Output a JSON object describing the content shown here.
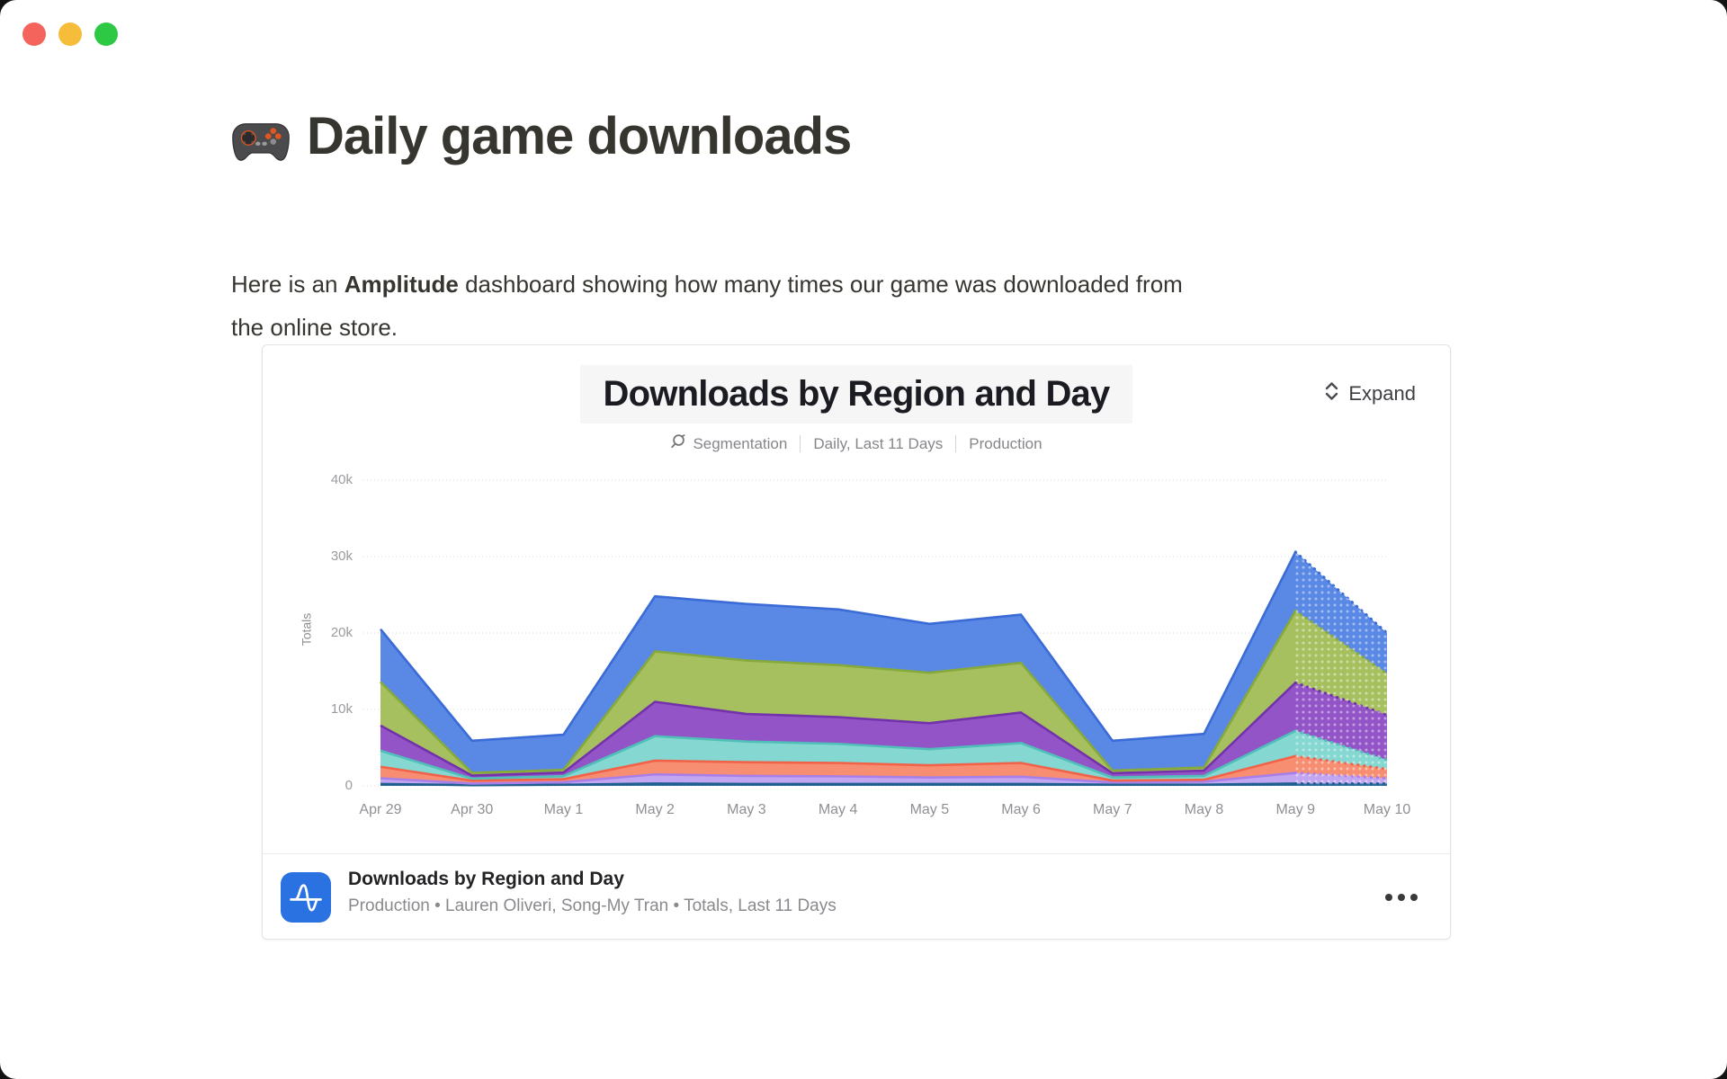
{
  "window": {
    "traffic_lights": [
      {
        "name": "close",
        "color": "#F4645C"
      },
      {
        "name": "minimize",
        "color": "#F6BD3A"
      },
      {
        "name": "zoom",
        "color": "#2EC944"
      }
    ]
  },
  "page": {
    "title": "Daily game downloads",
    "title_icon": "gamepad-emoji",
    "intro_pre": "Here is an ",
    "intro_bold": "Amplitude",
    "intro_post": " dashboard showing how many times our game was downloaded from the online store."
  },
  "card": {
    "chart_header": {
      "title": "Downloads by Region and Day",
      "meta_segmentation": "Segmentation",
      "meta_range": "Daily, Last 11 Days",
      "meta_env": "Production",
      "expand_label": "Expand"
    },
    "footer": {
      "title": "Downloads by Region and Day",
      "subtitle": "Production • Lauren Oliveri, Song-My Tran • Totals, Last 11 Days"
    }
  },
  "chart_data": {
    "type": "area",
    "stacked": true,
    "title": "Downloads by Region and Day",
    "ylabel": "Totals",
    "grid": "horizontal-dotted",
    "legend_position": "none",
    "ylim": [
      0,
      40000
    ],
    "yticks": [
      {
        "label": "0",
        "value": 0
      },
      {
        "label": "10k",
        "value": 10000
      },
      {
        "label": "20k",
        "value": 20000
      },
      {
        "label": "30k",
        "value": 30000
      },
      {
        "label": "40k",
        "value": 40000
      }
    ],
    "x": [
      "Apr 29",
      "Apr 30",
      "May 1",
      "May 2",
      "May 3",
      "May 4",
      "May 5",
      "May 6",
      "May 7",
      "May 8",
      "May 9",
      "May 10"
    ],
    "partial_last_segment": true,
    "series": [
      {
        "name": "dark-blue (bottom)",
        "fill": "#2B6E9E",
        "stroke": "#1E5F90",
        "values": [
          250,
          100,
          150,
          300,
          250,
          250,
          250,
          250,
          150,
          150,
          300,
          300
        ]
      },
      {
        "name": "lavender",
        "fill": "#C3A6F1",
        "stroke": "#A87FE9",
        "values": [
          750,
          200,
          330,
          1200,
          1050,
          1000,
          850,
          950,
          300,
          400,
          1400,
          700
        ]
      },
      {
        "name": "salmon",
        "fill": "#F78E72",
        "stroke": "#F26248",
        "values": [
          1500,
          380,
          390,
          1800,
          1800,
          1750,
          1600,
          1800,
          250,
          250,
          2200,
          1200
        ]
      },
      {
        "name": "teal",
        "fill": "#85D7D2",
        "stroke": "#4FBFB8",
        "values": [
          2100,
          270,
          400,
          3200,
          2700,
          2500,
          2100,
          2600,
          400,
          500,
          3300,
          1200
        ]
      },
      {
        "name": "purple",
        "fill": "#9254C7",
        "stroke": "#7331AB",
        "values": [
          3300,
          400,
          480,
          4500,
          3600,
          3500,
          3400,
          4000,
          550,
          700,
          6300,
          5900
        ]
      },
      {
        "name": "green",
        "fill": "#A7C05F",
        "stroke": "#86A93C",
        "values": [
          5700,
          350,
          350,
          6600,
          7000,
          6800,
          6600,
          6500,
          350,
          400,
          9400,
          5400
        ]
      },
      {
        "name": "blue (top)",
        "fill": "#5988E5",
        "stroke": "#3A6BD6",
        "values": [
          6900,
          4200,
          4600,
          7200,
          7400,
          7300,
          6400,
          6300,
          3900,
          4400,
          7700,
          5300
        ]
      }
    ],
    "totals": [
      20500,
      5900,
      6700,
      24800,
      23800,
      23100,
      21200,
      22400,
      5900,
      6800,
      30600,
      20000
    ]
  }
}
